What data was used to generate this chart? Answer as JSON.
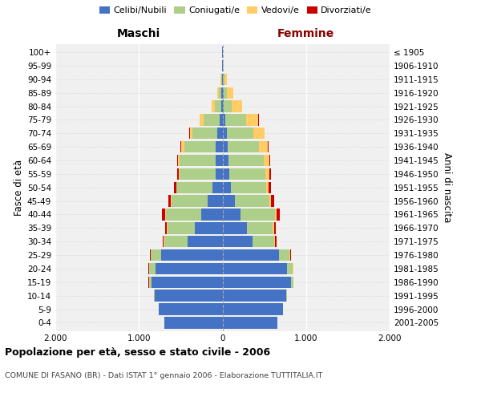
{
  "age_groups": [
    "0-4",
    "5-9",
    "10-14",
    "15-19",
    "20-24",
    "25-29",
    "30-34",
    "35-39",
    "40-44",
    "45-49",
    "50-54",
    "55-59",
    "60-64",
    "65-69",
    "70-74",
    "75-79",
    "80-84",
    "85-89",
    "90-94",
    "95-99",
    "100+"
  ],
  "birth_years": [
    "2001-2005",
    "1996-2000",
    "1991-1995",
    "1986-1990",
    "1981-1985",
    "1976-1980",
    "1971-1975",
    "1966-1970",
    "1961-1965",
    "1956-1960",
    "1951-1955",
    "1946-1950",
    "1941-1945",
    "1936-1940",
    "1931-1935",
    "1926-1930",
    "1921-1925",
    "1916-1920",
    "1911-1915",
    "1906-1910",
    "≤ 1905"
  ],
  "maschi": {
    "celibi": [
      700,
      760,
      810,
      850,
      800,
      730,
      420,
      330,
      250,
      180,
      120,
      80,
      80,
      80,
      60,
      30,
      15,
      10,
      5,
      2,
      2
    ],
    "coniugati": [
      0,
      5,
      10,
      30,
      80,
      130,
      280,
      330,
      430,
      430,
      430,
      430,
      430,
      380,
      300,
      200,
      80,
      30,
      10,
      3,
      0
    ],
    "vedovi": [
      0,
      0,
      0,
      1,
      2,
      2,
      2,
      3,
      5,
      5,
      5,
      10,
      20,
      30,
      30,
      40,
      30,
      20,
      8,
      2,
      0
    ],
    "divorziati": [
      0,
      0,
      0,
      3,
      5,
      10,
      15,
      20,
      35,
      30,
      25,
      20,
      15,
      10,
      5,
      5,
      0,
      0,
      0,
      0,
      0
    ]
  },
  "femmine": {
    "nubili": [
      660,
      720,
      760,
      820,
      770,
      680,
      360,
      290,
      220,
      150,
      100,
      80,
      70,
      60,
      50,
      30,
      15,
      10,
      5,
      3,
      2
    ],
    "coniugate": [
      0,
      3,
      8,
      25,
      70,
      120,
      260,
      310,
      410,
      410,
      420,
      430,
      420,
      380,
      320,
      250,
      100,
      40,
      15,
      5,
      0
    ],
    "vedove": [
      0,
      1,
      2,
      3,
      5,
      8,
      10,
      15,
      20,
      25,
      30,
      50,
      70,
      100,
      130,
      150,
      120,
      80,
      30,
      10,
      3
    ],
    "divorziate": [
      0,
      0,
      0,
      3,
      5,
      10,
      15,
      20,
      40,
      35,
      30,
      20,
      15,
      10,
      5,
      5,
      0,
      0,
      0,
      0,
      0
    ]
  },
  "colors": {
    "celibi": "#4472C4",
    "coniugati": "#AECF89",
    "vedovi": "#FFCC66",
    "divorziati": "#CC0000"
  },
  "legend_labels": [
    "Celibi/Nubili",
    "Coniugati/e",
    "Vedovi/e",
    "Divorziati/e"
  ],
  "xlim": 2000,
  "xticks": [
    -2000,
    -1000,
    0,
    1000,
    2000
  ],
  "xticklabels": [
    "2.000",
    "1.000",
    "0",
    "1.000",
    "2.000"
  ],
  "title_main": "Popolazione per età, sesso e stato civile - 2006",
  "subtitle": "COMUNE DI FASANO (BR) - Dati ISTAT 1° gennaio 2006 - Elaborazione TUTTITALIA.IT",
  "ylabel_left": "Fasce di età",
  "ylabel_right": "Anni di nascita",
  "header_maschi": "Maschi",
  "header_femmine": "Femmine",
  "bg_color": "#f0f0f0"
}
